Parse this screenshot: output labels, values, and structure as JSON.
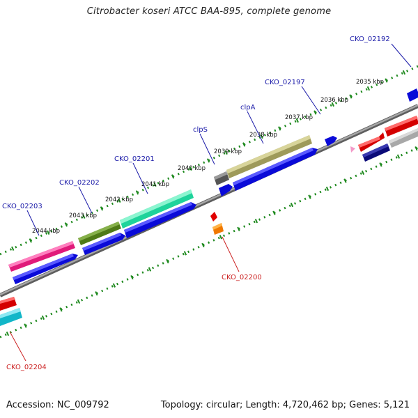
{
  "title": "Citrobacter koseri ATCC BAA-895, complete genome",
  "footer": {
    "accession": "Accession: NC_009792",
    "topology": "Topology: circular; Length: 4,720,462 bp; Genes: 5,121"
  },
  "kbp_ticks": [
    "2035 kbp",
    "2036 kbp",
    "2037 kbp",
    "2038 kbp",
    "2039 kbp",
    "2040 kbp",
    "2041 kbp",
    "2042 kbp",
    "2043 kbp",
    "2044 kbp"
  ],
  "gene_labels": {
    "forward": [
      "CKO_02192",
      "CKO_02197",
      "clpA",
      "clpS",
      "CKO_02201",
      "CKO_02202",
      "CKO_02203"
    ],
    "reverse": [
      "CKO_02200",
      "CKO_02204"
    ]
  },
  "colors": {
    "forward_label": "#1a1aa8",
    "reverse_label": "#cc2222",
    "tick_green": "#1f8a1f",
    "backbone": "#8c8c8c",
    "cds_blue": "#1010e0",
    "cds_red": "#ee1111"
  }
}
